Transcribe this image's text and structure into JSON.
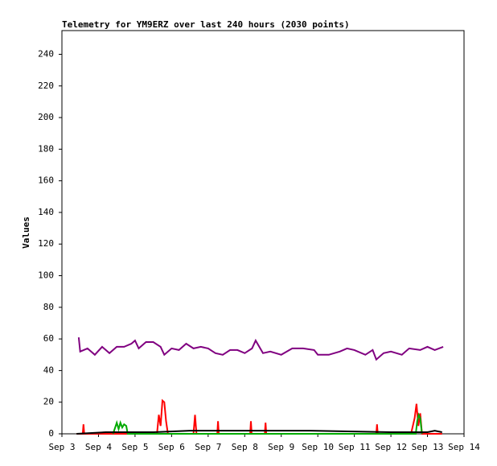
{
  "chart_data": {
    "type": "line",
    "title": "Telemetry for YM9ERZ over last 240 hours (2030 points)",
    "y_label": "Values",
    "ylim": [
      0,
      255
    ],
    "yticks": [
      0,
      20,
      40,
      60,
      80,
      100,
      120,
      140,
      160,
      180,
      200,
      220,
      240
    ],
    "xlim": [
      3,
      14
    ],
    "xticks": [
      {
        "value": 3,
        "label": "Sep 3"
      },
      {
        "value": 4,
        "label": "Sep 4"
      },
      {
        "value": 5,
        "label": "Sep 5"
      },
      {
        "value": 6,
        "label": "Sep 6"
      },
      {
        "value": 7,
        "label": "Sep 7"
      },
      {
        "value": 8,
        "label": "Sep 8"
      },
      {
        "value": 9,
        "label": "Sep 9"
      },
      {
        "value": 10,
        "label": "Sep 10"
      },
      {
        "value": 11,
        "label": "Sep 11"
      },
      {
        "value": 12,
        "label": "Sep 12"
      },
      {
        "value": 13,
        "label": "Sep 13"
      },
      {
        "value": 14,
        "label": "Sep 14"
      }
    ],
    "series": [
      {
        "color": "#800080",
        "x": [
          3.46,
          3.5,
          3.7,
          3.9,
          4.1,
          4.3,
          4.5,
          4.7,
          4.9,
          5.0,
          5.1,
          5.3,
          5.5,
          5.7,
          5.8,
          6.0,
          6.2,
          6.4,
          6.6,
          6.8,
          7.0,
          7.2,
          7.4,
          7.6,
          7.8,
          8.0,
          8.2,
          8.3,
          8.5,
          8.7,
          9.0,
          9.3,
          9.6,
          9.9,
          10.0,
          10.3,
          10.6,
          10.8,
          11.0,
          11.3,
          11.5,
          11.6,
          11.8,
          12.0,
          12.3,
          12.5,
          12.8,
          13.0,
          13.2,
          13.43
        ],
        "values": [
          61,
          52,
          54,
          50,
          55,
          51,
          55,
          55,
          57,
          59,
          54,
          58,
          58,
          55,
          50,
          54,
          53,
          57,
          54,
          55,
          54,
          51,
          50,
          53,
          53,
          51,
          54,
          59,
          51,
          52,
          50,
          54,
          54,
          53,
          50,
          50,
          52,
          54,
          53,
          50,
          53,
          47,
          51,
          52,
          50,
          54,
          53,
          55,
          53,
          55
        ]
      },
      {
        "color": "#ff0000",
        "x": [
          3.4,
          3.57,
          3.59,
          3.61,
          5.6,
          5.65,
          5.7,
          5.75,
          5.8,
          5.85,
          5.9,
          6.6,
          6.64,
          6.68,
          7.25,
          7.27,
          7.29,
          8.15,
          8.17,
          8.19,
          8.55,
          8.57,
          8.59,
          11.6,
          11.62,
          11.64,
          12.55,
          12.65,
          12.7,
          12.75,
          12.8,
          12.85,
          13.4
        ],
        "values": [
          0,
          0,
          6,
          0,
          0,
          12,
          5,
          21,
          20,
          8,
          0,
          0,
          12,
          0,
          0,
          8,
          0,
          0,
          8,
          0,
          0,
          7,
          0,
          0,
          6,
          0,
          0,
          10,
          19,
          5,
          13,
          0,
          0
        ]
      },
      {
        "color": "#00aa00",
        "x": [
          4.4,
          4.5,
          4.55,
          4.6,
          4.65,
          4.7,
          4.76,
          4.8,
          12.68,
          12.72,
          12.76,
          12.8,
          12.85
        ],
        "values": [
          0,
          7,
          3,
          7,
          4,
          6,
          5,
          0,
          0,
          8,
          12,
          10,
          0
        ]
      },
      {
        "color": "#000000",
        "x": [
          3.4,
          4.2,
          5.5,
          6.5,
          9.8,
          12.0,
          13.0,
          13.2,
          13.4
        ],
        "values": [
          0,
          1,
          1,
          2,
          2,
          1,
          1,
          2,
          1
        ]
      }
    ]
  }
}
